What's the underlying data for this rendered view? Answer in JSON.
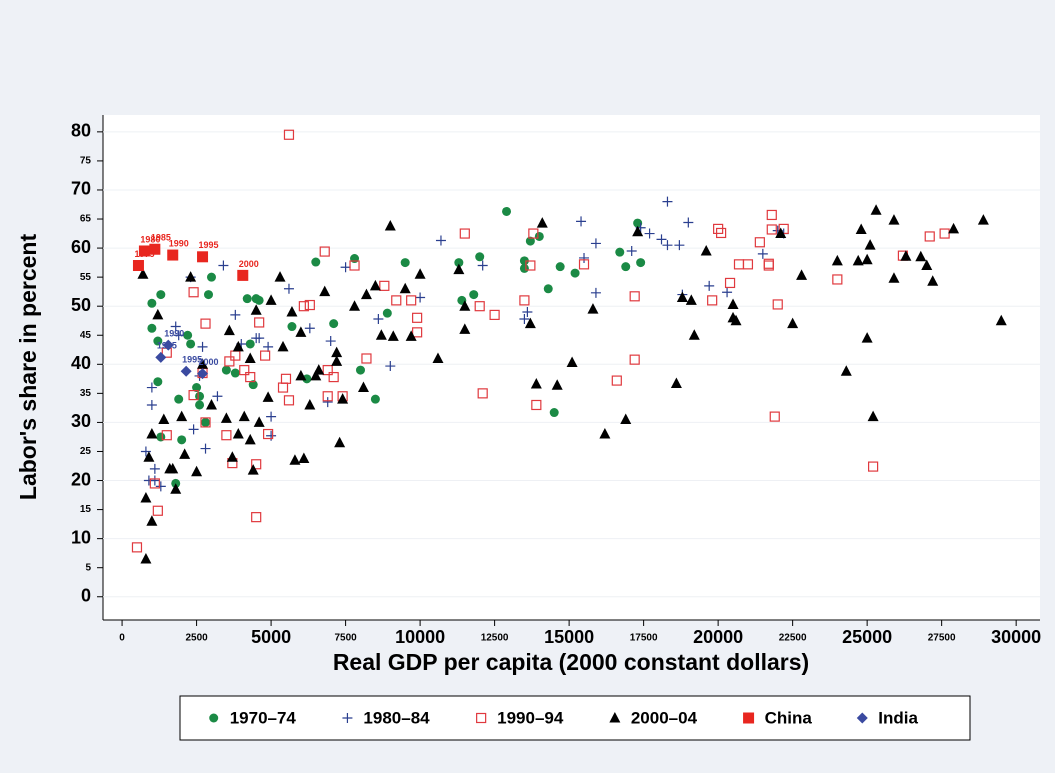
{
  "chart_data": {
    "type": "scatter",
    "x_label": "Real GDP per capita (2000 constant dollars)",
    "y_label": "Labor's share in percent",
    "xlim": [
      -640,
      30800
    ],
    "ylim": [
      -4,
      82.9
    ],
    "xticks": [
      5000,
      10000,
      15000,
      20000,
      25000,
      30000
    ],
    "xticks_minor": [
      0,
      2500,
      7500,
      12500,
      17500,
      22500,
      27500
    ],
    "yticks": [
      0,
      10,
      20,
      30,
      40,
      50,
      60,
      70,
      80
    ],
    "yticks_minor": [
      5,
      15,
      25,
      35,
      45,
      55,
      65,
      75
    ],
    "grid": true,
    "series": [
      {
        "name": "1970–74",
        "color": "#1b8a45",
        "marker": "circle",
        "x": [
          1000,
          1000,
          1200,
          1200,
          1300,
          1300,
          1800,
          1900,
          2000,
          2200,
          2300,
          2500,
          2600,
          2600,
          2800,
          2900,
          3000,
          3500,
          3800,
          4200,
          4300,
          4500,
          4600,
          4400,
          5700,
          6200,
          6500,
          7100,
          7800,
          8000,
          8500,
          8900,
          9500,
          11300,
          11400,
          11800,
          12000,
          12900,
          13500,
          13500,
          13700,
          14000,
          14300,
          14500,
          14700,
          15200,
          16700,
          16900,
          17300,
          17400
        ],
        "values": [
          50.5,
          46.2,
          44,
          37,
          52,
          27.5,
          19.5,
          34,
          27,
          45,
          43.5,
          36,
          34.5,
          33,
          30,
          52,
          55,
          39,
          38.5,
          51.3,
          43.5,
          51.3,
          51,
          36.5,
          46.5,
          37.5,
          57.6,
          47,
          58.2,
          39,
          34,
          48.8,
          57.5,
          57.5,
          51,
          52,
          58.5,
          66.3,
          56.5,
          57.8,
          61.2,
          62,
          53,
          31.7,
          56.8,
          55.7,
          59.3,
          56.8,
          64.3,
          57.5
        ]
      },
      {
        "name": "1980–84",
        "color": "#2a3f8f",
        "marker": "plus",
        "x": [
          800,
          900,
          1000,
          1000,
          1100,
          1100,
          1300,
          1800,
          1900,
          2300,
          2400,
          2600,
          2700,
          2800,
          3200,
          3400,
          3800,
          4000,
          4500,
          4600,
          4900,
          5000,
          5000,
          5600,
          6300,
          6900,
          7000,
          7500,
          8600,
          9000,
          10000,
          10700,
          12100,
          13500,
          13600,
          15400,
          15500,
          15900,
          15900,
          17100,
          17400,
          17700,
          18100,
          18300,
          18300,
          18700,
          18800,
          19000,
          19700,
          20300,
          21500,
          22000,
          22200
        ],
        "values": [
          25,
          20,
          33,
          36,
          22,
          20,
          19,
          46.5,
          45,
          55,
          28.8,
          38,
          43,
          25.5,
          34.5,
          57,
          48.5,
          43.5,
          44.5,
          44.5,
          43,
          31,
          27.7,
          53,
          46.2,
          33.5,
          44,
          56.7,
          47.8,
          39.7,
          51.5,
          61.3,
          57,
          47.8,
          49,
          64.6,
          58.3,
          60.8,
          52.3,
          59.5,
          63.5,
          62.5,
          61.5,
          68,
          60.5,
          60.5,
          52,
          64.4,
          53.5,
          52.4,
          59,
          63,
          62.5
        ]
      },
      {
        "name": "1990–94",
        "color": "#e0393e",
        "marker": "open-square",
        "x": [
          500,
          1100,
          1200,
          1500,
          1500,
          2400,
          2400,
          2700,
          2800,
          2800,
          3500,
          3600,
          3700,
          3800,
          4100,
          4300,
          4500,
          4500,
          4600,
          4800,
          4900,
          5400,
          5500,
          5600,
          5600,
          6100,
          6300,
          6800,
          6900,
          6900,
          7100,
          7400,
          7800,
          8200,
          8800,
          9200,
          9700,
          9900,
          9900,
          11500,
          12000,
          12100,
          12500,
          13500,
          13700,
          13800,
          13900,
          15500,
          16600,
          17200,
          17200,
          19800,
          20000,
          20100,
          20400,
          20700,
          21000,
          21400,
          21700,
          21700,
          21800,
          21800,
          21900,
          22000,
          22200,
          24000,
          25200,
          26200,
          27100,
          27600
        ],
        "values": [
          8.5,
          19.5,
          14.8,
          27.8,
          42,
          34.7,
          52.4,
          38.5,
          47,
          30,
          27.8,
          40.5,
          23,
          41.5,
          39,
          37.8,
          22.8,
          13.7,
          47.2,
          41.5,
          28,
          36,
          37.5,
          33.8,
          79.5,
          50,
          50.2,
          59.4,
          39,
          34.5,
          37.8,
          34.5,
          57,
          41,
          53.5,
          51,
          51,
          45.5,
          48,
          62.5,
          50,
          35,
          48.5,
          51,
          57,
          62.5,
          33,
          57.2,
          37.2,
          40.8,
          51.7,
          51,
          63.3,
          62.6,
          54,
          57.2,
          57.2,
          61,
          57,
          57.3,
          65.7,
          63.2,
          31,
          50.3,
          63.3,
          54.6,
          22.4,
          58.7,
          62,
          62.5
        ]
      },
      {
        "name": "2000–04",
        "color": "#000000",
        "marker": "triangle",
        "x": [
          700,
          800,
          800,
          900,
          1000,
          1000,
          1200,
          1400,
          1600,
          1700,
          1800,
          2000,
          2100,
          2300,
          2500,
          2700,
          3000,
          3500,
          3600,
          3700,
          3900,
          3900,
          4100,
          4300,
          4300,
          4400,
          4500,
          4600,
          4900,
          5000,
          5300,
          5400,
          5700,
          5800,
          6000,
          6000,
          6100,
          6300,
          6500,
          6600,
          6800,
          7200,
          7200,
          7300,
          7400,
          7800,
          8100,
          8200,
          8500,
          8700,
          9000,
          9100,
          9500,
          9700,
          10000,
          10600,
          11300,
          11500,
          11500,
          13700,
          13900,
          14100,
          14600,
          15100,
          15800,
          16200,
          16900,
          17300,
          18600,
          18800,
          19100,
          19200,
          19600,
          20500,
          20500,
          20600,
          22100,
          22500,
          22800,
          24000,
          24300,
          24700,
          24800,
          25000,
          25000,
          25100,
          25200,
          25300,
          25900,
          25900,
          26300,
          26800,
          27000,
          27200,
          27900,
          28900,
          29500
        ],
        "values": [
          55.5,
          17,
          6.5,
          24,
          28,
          13,
          48.5,
          30.5,
          22,
          22,
          18.5,
          31,
          24.5,
          55,
          21.5,
          40,
          33,
          30.7,
          45.8,
          24,
          28,
          43,
          31,
          27,
          41,
          21.8,
          49.3,
          30,
          34.3,
          51,
          55,
          43,
          49,
          23.5,
          45.5,
          38,
          23.8,
          33,
          38,
          39,
          52.5,
          42,
          40.5,
          26.5,
          34,
          50,
          36,
          52,
          53.5,
          45,
          63.8,
          44.8,
          53,
          44.8,
          55.5,
          41,
          56.3,
          46,
          50,
          47,
          36.6,
          64.3,
          36.4,
          40.3,
          49.5,
          28,
          30.5,
          62.8,
          36.7,
          51.5,
          51,
          45,
          59.5,
          48,
          50.3,
          47.5,
          62.5,
          47,
          55.3,
          57.8,
          38.8,
          57.8,
          63.2,
          58,
          44.5,
          60.5,
          31,
          66.5,
          54.8,
          64.8,
          58.6,
          58.5,
          57,
          54.3,
          63.3,
          64.8,
          47.5
        ]
      },
      {
        "name": "China",
        "color": "#e8261f",
        "marker": "square",
        "x": [
          550,
          750,
          1100,
          1700,
          2700,
          4050
        ],
        "values": [
          57,
          59.5,
          59.8,
          58.8,
          58.5,
          55.3
        ],
        "labels": [
          "1975",
          "1980",
          "1985",
          "1990",
          "1995",
          "2000"
        ]
      },
      {
        "name": "India",
        "color": "#3a4aa0",
        "marker": "diamond",
        "x": [
          1300,
          1550,
          2150,
          2700
        ],
        "values": [
          41.2,
          43.3,
          38.8,
          38.4
        ],
        "labels": [
          "1985",
          "1990",
          "1995",
          "2000"
        ]
      }
    ]
  }
}
